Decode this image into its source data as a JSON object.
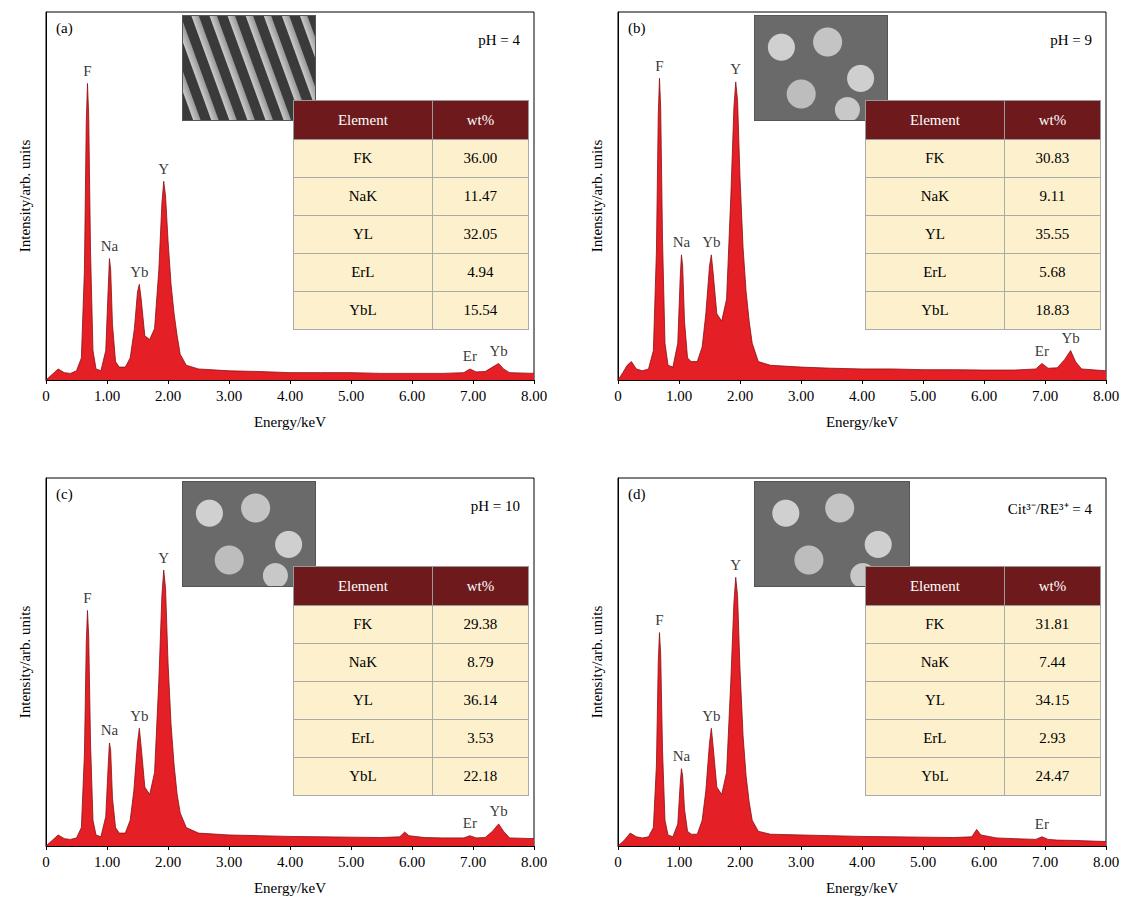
{
  "chart_data": [
    {
      "type": "area",
      "title": "(a)",
      "annotation": "pH = 4",
      "color": "#e41f26",
      "x_label": "Energy/keV",
      "y_label": "Intensity/arb. units",
      "tick_labels": "x",
      "xlim": [
        0,
        8
      ],
      "xticks": [
        0,
        {
          "value": 1,
          "label": "1.00"
        },
        {
          "value": 2,
          "label": "2.00"
        },
        {
          "value": 3,
          "label": "3.00"
        },
        {
          "value": 4,
          "label": "4.00"
        },
        {
          "value": 5,
          "label": "5.00"
        },
        {
          "value": 6,
          "label": "6.00"
        },
        {
          "value": 7,
          "label": "7.00"
        },
        {
          "value": 8,
          "label": "8.00"
        }
      ],
      "ylim": [
        0,
        100
      ],
      "x": [
        0,
        0.1,
        0.2,
        0.3,
        0.4,
        0.5,
        0.58,
        0.63,
        0.66,
        0.68,
        0.7,
        0.73,
        0.77,
        0.82,
        0.9,
        0.98,
        1.02,
        1.04,
        1.06,
        1.09,
        1.14,
        1.2,
        1.3,
        1.38,
        1.45,
        1.5,
        1.53,
        1.56,
        1.62,
        1.7,
        1.78,
        1.85,
        1.9,
        1.93,
        1.96,
        2.0,
        2.05,
        2.1,
        2.15,
        2.2,
        2.3,
        2.5,
        3,
        3.5,
        4,
        4.5,
        5,
        5.5,
        6,
        6.5,
        6.85,
        6.95,
        7.05,
        7.2,
        7.32,
        7.42,
        7.5,
        7.6,
        8
      ],
      "values": [
        0,
        1.5,
        3,
        2,
        1.8,
        2.5,
        6,
        30,
        70,
        80.6,
        72,
        35,
        8,
        3,
        2.5,
        8,
        25,
        33,
        30,
        15,
        5,
        3.5,
        3.5,
        6,
        14,
        24,
        26,
        22,
        12,
        11,
        14,
        30,
        48,
        54,
        50,
        38,
        26,
        18,
        12,
        7,
        4,
        3,
        2.5,
        2.3,
        2,
        2,
        2,
        1.8,
        1.8,
        1.8,
        2,
        3,
        2.2,
        2.3,
        3.5,
        4.5,
        3,
        2,
        1.8
      ],
      "peak_labels": [
        {
          "label": "F",
          "x": 0.68
        },
        {
          "label": "Na",
          "x": 1.04
        },
        {
          "label": "Yb",
          "x": 1.53
        },
        {
          "label": "Y",
          "x": 1.93
        },
        {
          "label": "Er",
          "x": 6.95
        },
        {
          "label": "Yb",
          "x": 7.42
        }
      ],
      "table": {
        "columns": [
          "Element",
          "wt%"
        ],
        "rows": [
          [
            "FK",
            "36.00"
          ],
          [
            "NaK",
            "11.47"
          ],
          [
            "YL",
            "32.05"
          ],
          [
            "ErL",
            "4.94"
          ],
          [
            "YbL",
            "15.54"
          ]
        ]
      }
    },
    {
      "type": "area",
      "title": "(b)",
      "annotation": "pH = 9",
      "color": "#e41f26",
      "x_label": "Energy/keV",
      "y_label": "Intensity/arb. units",
      "tick_labels": "x",
      "xlim": [
        0,
        8
      ],
      "xticks": [
        0,
        {
          "value": 1,
          "label": "1.00"
        },
        {
          "value": 2,
          "label": "2.00"
        },
        {
          "value": 3,
          "label": "3.00"
        },
        {
          "value": 4,
          "label": "4.00"
        },
        {
          "value": 5,
          "label": "5.00"
        },
        {
          "value": 6,
          "label": "6.00"
        },
        {
          "value": 7,
          "label": "7.00"
        },
        {
          "value": 8,
          "label": "8.00"
        }
      ],
      "ylim": [
        0,
        100
      ],
      "x": [
        0,
        0.08,
        0.15,
        0.22,
        0.3,
        0.4,
        0.5,
        0.58,
        0.63,
        0.66,
        0.68,
        0.7,
        0.73,
        0.77,
        0.82,
        0.9,
        0.98,
        1.02,
        1.04,
        1.06,
        1.09,
        1.14,
        1.2,
        1.3,
        1.38,
        1.44,
        1.5,
        1.53,
        1.56,
        1.62,
        1.7,
        1.78,
        1.85,
        1.9,
        1.93,
        1.96,
        2.0,
        2.05,
        2.1,
        2.15,
        2.2,
        2.3,
        2.5,
        3,
        3.5,
        4,
        4.5,
        5,
        5.5,
        6,
        6.5,
        6.85,
        6.95,
        7.05,
        7.2,
        7.32,
        7.42,
        7.5,
        7.6,
        8
      ],
      "values": [
        0,
        2,
        4,
        5,
        3,
        2.5,
        3,
        8,
        35,
        72,
        82,
        74,
        38,
        10,
        4,
        3.5,
        10,
        28,
        34,
        31,
        16,
        6,
        5,
        5,
        9,
        18,
        31,
        34,
        29,
        18,
        16,
        22,
        50,
        74,
        81,
        76,
        55,
        36,
        24,
        16,
        10,
        5,
        4,
        3.5,
        3.2,
        3,
        3,
        2.8,
        2.8,
        2.7,
        2.7,
        3,
        4.5,
        3.2,
        3.3,
        5.5,
        8,
        5,
        3,
        2.5
      ],
      "peak_labels": [
        {
          "label": "F",
          "x": 0.68
        },
        {
          "label": "Na",
          "x": 1.04
        },
        {
          "label": "Yb",
          "x": 1.53
        },
        {
          "label": "Y",
          "x": 1.93
        },
        {
          "label": "Er",
          "x": 6.95
        },
        {
          "label": "Yb",
          "x": 7.42
        }
      ],
      "table": {
        "columns": [
          "Element",
          "wt%"
        ],
        "rows": [
          [
            "FK",
            "30.83"
          ],
          [
            "NaK",
            "9.11"
          ],
          [
            "YL",
            "35.55"
          ],
          [
            "ErL",
            "5.68"
          ],
          [
            "YbL",
            "18.83"
          ]
        ]
      }
    },
    {
      "type": "area",
      "title": "(c)",
      "annotation": "pH = 10",
      "color": "#e41f26",
      "x_label": "Energy/keV",
      "y_label": "Intensity/arb. units",
      "tick_labels": "x",
      "xlim": [
        0,
        8
      ],
      "xticks": [
        0,
        {
          "value": 1,
          "label": "1.00"
        },
        {
          "value": 2,
          "label": "2.00"
        },
        {
          "value": 3,
          "label": "3.00"
        },
        {
          "value": 4,
          "label": "4.00"
        },
        {
          "value": 5,
          "label": "5.00"
        },
        {
          "value": 6,
          "label": "6.00"
        },
        {
          "value": 7,
          "label": "7.00"
        },
        {
          "value": 8,
          "label": "8.00"
        }
      ],
      "ylim": [
        0,
        100
      ],
      "x": [
        0,
        0.1,
        0.2,
        0.3,
        0.4,
        0.5,
        0.58,
        0.63,
        0.66,
        0.68,
        0.7,
        0.73,
        0.77,
        0.82,
        0.9,
        0.98,
        1.02,
        1.04,
        1.06,
        1.09,
        1.14,
        1.2,
        1.3,
        1.38,
        1.44,
        1.5,
        1.53,
        1.56,
        1.62,
        1.7,
        1.78,
        1.85,
        1.9,
        1.93,
        1.96,
        2.0,
        2.05,
        2.1,
        2.15,
        2.2,
        2.3,
        2.5,
        3,
        3.5,
        4,
        4.5,
        5,
        5.5,
        5.8,
        5.88,
        5.95,
        6.2,
        6.5,
        6.85,
        6.95,
        7.05,
        7.2,
        7.32,
        7.42,
        7.5,
        7.6,
        8
      ],
      "values": [
        0,
        1.5,
        3,
        2,
        1.8,
        2.2,
        5,
        25,
        55,
        64,
        57,
        28,
        7,
        3,
        2.5,
        8,
        22,
        28,
        26,
        13,
        5,
        3.5,
        3.5,
        7,
        15,
        28,
        32,
        27,
        16,
        14,
        20,
        45,
        68,
        75,
        70,
        50,
        33,
        22,
        14,
        9,
        5,
        3.5,
        3,
        2.8,
        2.6,
        2.5,
        2.4,
        2.3,
        2.5,
        3.8,
        2.8,
        2.3,
        2.2,
        2.2,
        2.8,
        2.2,
        2.3,
        4,
        6,
        4,
        2.2,
        2
      ],
      "peak_labels": [
        {
          "label": "F",
          "x": 0.68
        },
        {
          "label": "Na",
          "x": 1.04
        },
        {
          "label": "Yb",
          "x": 1.53
        },
        {
          "label": "Y",
          "x": 1.93
        },
        {
          "label": "Er",
          "x": 6.95
        },
        {
          "label": "Yb",
          "x": 7.42
        }
      ],
      "table": {
        "columns": [
          "Element",
          "wt%"
        ],
        "rows": [
          [
            "FK",
            "29.38"
          ],
          [
            "NaK",
            "8.79"
          ],
          [
            "YL",
            "36.14"
          ],
          [
            "ErL",
            "3.53"
          ],
          [
            "YbL",
            "22.18"
          ]
        ]
      }
    },
    {
      "type": "area",
      "title": "(d)",
      "annotation": "Cit³⁻/RE³⁺ = 4",
      "color": "#e41f26",
      "x_label": "Energy/keV",
      "y_label": "Intensity/arb. units",
      "tick_labels": "x",
      "xlim": [
        0,
        8
      ],
      "xticks": [
        0,
        {
          "value": 1,
          "label": "1.00"
        },
        {
          "value": 2,
          "label": "2.00"
        },
        {
          "value": 3,
          "label": "3.00"
        },
        {
          "value": 4,
          "label": "4.00"
        },
        {
          "value": 5,
          "label": "5.00"
        },
        {
          "value": 6,
          "label": "6.00"
        },
        {
          "value": 7,
          "label": "7.00"
        },
        {
          "value": 8,
          "label": "8.00"
        }
      ],
      "ylim": [
        0,
        100
      ],
      "x": [
        0,
        0.1,
        0.2,
        0.3,
        0.4,
        0.5,
        0.58,
        0.63,
        0.66,
        0.68,
        0.7,
        0.73,
        0.77,
        0.82,
        0.9,
        0.98,
        1.02,
        1.04,
        1.06,
        1.09,
        1.14,
        1.2,
        1.3,
        1.38,
        1.44,
        1.5,
        1.53,
        1.56,
        1.62,
        1.7,
        1.78,
        1.85,
        1.9,
        1.93,
        1.96,
        2.0,
        2.05,
        2.1,
        2.15,
        2.2,
        2.3,
        2.5,
        3,
        3.5,
        4,
        4.5,
        5,
        5.5,
        5.8,
        5.88,
        5.95,
        6.2,
        6.5,
        6.85,
        6.95,
        7.05,
        7.2,
        7.5,
        8
      ],
      "values": [
        0,
        1.5,
        3.5,
        2.5,
        2.2,
        2.5,
        5,
        22,
        50,
        58,
        52,
        26,
        7,
        3,
        2.5,
        6,
        17,
        21,
        19,
        10,
        4,
        3.2,
        3.2,
        7,
        15,
        28,
        32,
        27,
        16,
        14,
        20,
        45,
        66,
        73,
        68,
        48,
        30,
        19,
        12,
        7,
        4,
        3.2,
        3,
        2.8,
        2.6,
        2.5,
        2.4,
        2.3,
        2.5,
        4.5,
        3,
        2.2,
        2,
        1.8,
        2.5,
        1.8,
        1.6,
        1.5,
        1.2
      ],
      "peak_labels": [
        {
          "label": "F",
          "x": 0.68
        },
        {
          "label": "Na",
          "x": 1.04
        },
        {
          "label": "Yb",
          "x": 1.53
        },
        {
          "label": "Y",
          "x": 1.93
        },
        {
          "label": "Er",
          "x": 6.95
        }
      ],
      "table": {
        "columns": [
          "Element",
          "wt%"
        ],
        "rows": [
          [
            "FK",
            "31.81"
          ],
          [
            "NaK",
            "7.44"
          ],
          [
            "YL",
            "34.15"
          ],
          [
            "ErL",
            "2.93"
          ],
          [
            "YbL",
            "24.47"
          ]
        ]
      }
    }
  ]
}
